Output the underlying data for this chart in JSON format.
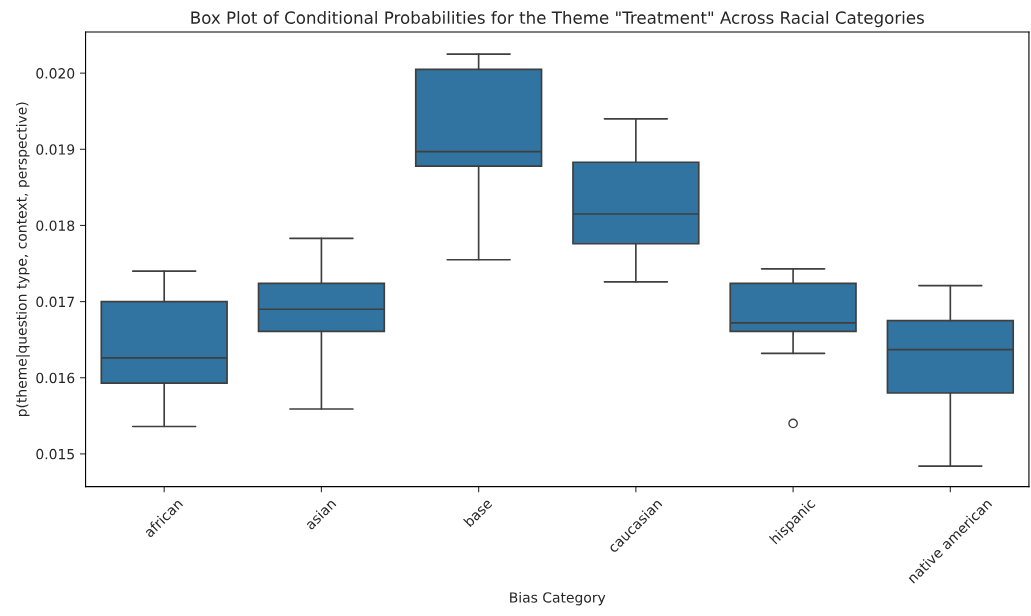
{
  "chart_data": {
    "type": "box",
    "title": "Box Plot of Conditional Probabilities for the Theme \"Treatment\" Across Racial Categories",
    "xlabel": "Bias Category",
    "ylabel": "p(theme|question type, context, perspective)",
    "categories": [
      "african",
      "asian",
      "base",
      "caucasian",
      "hispanic",
      "native american"
    ],
    "color": "#3274a1",
    "boxes": [
      {
        "low": 0.01536,
        "q1": 0.01593,
        "median": 0.01626,
        "q3": 0.017,
        "high": 0.0174
      },
      {
        "low": 0.01559,
        "q1": 0.01661,
        "median": 0.0169,
        "q3": 0.01724,
        "high": 0.01783
      },
      {
        "low": 0.01755,
        "q1": 0.01878,
        "median": 0.01897,
        "q3": 0.02005,
        "high": 0.02025
      },
      {
        "low": 0.01726,
        "q1": 0.01776,
        "median": 0.01815,
        "q3": 0.01883,
        "high": 0.0194
      },
      {
        "low": 0.01632,
        "q1": 0.01661,
        "median": 0.01672,
        "q3": 0.01724,
        "high": 0.01743,
        "outliers": [
          0.0154
        ]
      },
      {
        "low": 0.01484,
        "q1": 0.0158,
        "median": 0.01637,
        "q3": 0.01675,
        "high": 0.01721
      }
    ],
    "ylim": [
      0.01457,
      0.02054
    ],
    "yticks": [
      0.015,
      0.016,
      0.017,
      0.018,
      0.019,
      {
        "value": 0.02,
        "label": "0.020"
      }
    ],
    "grid": false,
    "legend": false
  }
}
